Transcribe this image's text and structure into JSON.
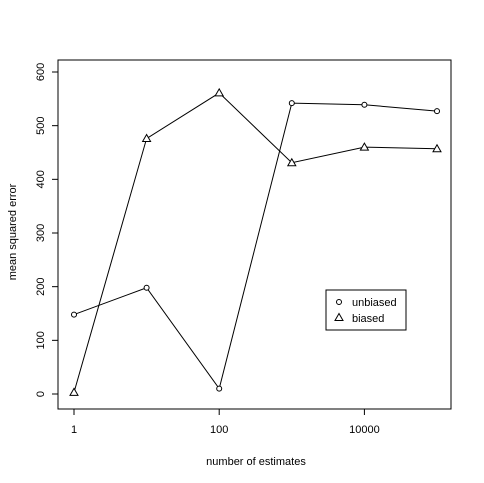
{
  "chart_data": {
    "type": "line",
    "title": "",
    "xlabel": "number of estimates",
    "ylabel": "mean squared error",
    "x_scale": "log10",
    "xlim": [
      1,
      100000
    ],
    "ylim": [
      0,
      600
    ],
    "x_ticks": [
      {
        "value": 1,
        "label": "1"
      },
      {
        "value": 100,
        "label": "100"
      },
      {
        "value": 10000,
        "label": "10000"
      }
    ],
    "y_ticks": [
      {
        "value": 0,
        "label": "0"
      },
      {
        "value": 100,
        "label": "100"
      },
      {
        "value": 200,
        "label": "200"
      },
      {
        "value": 300,
        "label": "300"
      },
      {
        "value": 400,
        "label": "400"
      },
      {
        "value": 500,
        "label": "500"
      },
      {
        "value": 600,
        "label": "600"
      }
    ],
    "x": [
      1,
      10,
      100,
      1000,
      10000,
      100000
    ],
    "series": [
      {
        "name": "unbiased",
        "marker": "circle",
        "values": [
          148,
          198,
          10,
          542,
          539,
          527
        ]
      },
      {
        "name": "biased",
        "marker": "triangle",
        "values": [
          3,
          476,
          561,
          431,
          460,
          457
        ]
      }
    ],
    "grid": false,
    "legend_position": "bottom-right",
    "colors": {
      "line": "#000000",
      "background": "#ffffff"
    }
  }
}
